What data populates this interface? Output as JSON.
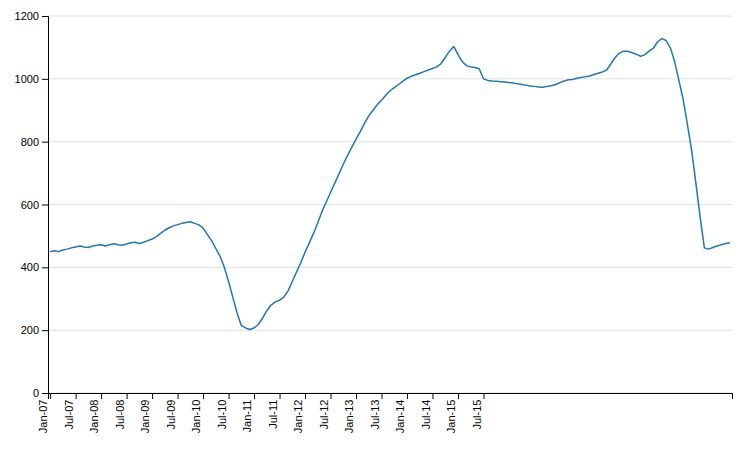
{
  "chart_data": {
    "type": "line",
    "categories": [
      "Jan-07",
      null,
      null,
      null,
      null,
      null,
      "Jul-07",
      null,
      null,
      null,
      null,
      null,
      "Jan-08",
      null,
      null,
      null,
      null,
      null,
      "Jul-08",
      null,
      null,
      null,
      null,
      null,
      "Jan-09",
      null,
      null,
      null,
      null,
      null,
      "Jul-09",
      null,
      null,
      null,
      null,
      null,
      "Jan-10",
      null,
      null,
      null,
      null,
      null,
      "Jul-10",
      null,
      null,
      null,
      null,
      null,
      "Jan-11",
      null,
      null,
      null,
      null,
      null,
      "Jul-11",
      null,
      null,
      null,
      null,
      null,
      "Jan-12",
      null,
      null,
      null,
      null,
      null,
      "Jul-12",
      null,
      null,
      null,
      null,
      null,
      "Jan-13",
      null,
      null,
      null,
      null,
      null,
      "Jul-13",
      null,
      null,
      null,
      null,
      null,
      "Jan-14",
      null,
      null,
      null,
      null,
      null,
      "Jul-14",
      null,
      null,
      null,
      null,
      null,
      "Jan-15",
      null,
      null,
      null,
      null,
      null,
      "Jul-15",
      null,
      null,
      null,
      null,
      null,
      null,
      null,
      null,
      null,
      null,
      null,
      null,
      null,
      null,
      null,
      null,
      null,
      null,
      null,
      null,
      null,
      null,
      null,
      null,
      null,
      null,
      null,
      null,
      null,
      null,
      null,
      null,
      null,
      null,
      null,
      null,
      null,
      null,
      null,
      null,
      null,
      null,
      null,
      null,
      null,
      null,
      null,
      null,
      null,
      null,
      null,
      null,
      null,
      null,
      null,
      null,
      null,
      null
    ],
    "values": [
      450,
      453,
      450,
      455,
      458,
      462,
      465,
      468,
      465,
      463,
      468,
      470,
      472,
      468,
      472,
      475,
      472,
      470,
      474,
      478,
      480,
      476,
      480,
      485,
      490,
      498,
      508,
      518,
      526,
      532,
      536,
      540,
      543,
      545,
      540,
      535,
      525,
      505,
      485,
      460,
      435,
      400,
      355,
      305,
      255,
      215,
      207,
      202,
      207,
      218,
      238,
      262,
      280,
      290,
      295,
      305,
      325,
      355,
      385,
      415,
      448,
      478,
      508,
      542,
      578,
      608,
      638,
      668,
      698,
      728,
      756,
      782,
      808,
      832,
      858,
      882,
      900,
      918,
      932,
      948,
      962,
      972,
      982,
      992,
      1002,
      1008,
      1013,
      1018,
      1023,
      1028,
      1033,
      1038,
      1048,
      1068,
      1088,
      1103,
      1078,
      1055,
      1042,
      1038,
      1036,
      1032,
      1000,
      995,
      993,
      992,
      991,
      990,
      988,
      987,
      984,
      982,
      980,
      977,
      976,
      974,
      973,
      976,
      978,
      982,
      988,
      993,
      997,
      998,
      1002,
      1004,
      1007,
      1009,
      1014,
      1018,
      1022,
      1028,
      1048,
      1068,
      1082,
      1088,
      1088,
      1083,
      1078,
      1072,
      1077,
      1088,
      1098,
      1118,
      1128,
      1122,
      1098,
      1055,
      995,
      935,
      855,
      772,
      668,
      560,
      462,
      458,
      463,
      468,
      472,
      476,
      478
    ],
    "ylim": [
      0,
      1200
    ],
    "yticks": [
      0,
      200,
      400,
      600,
      800,
      1000,
      1200
    ],
    "grid": true
  }
}
